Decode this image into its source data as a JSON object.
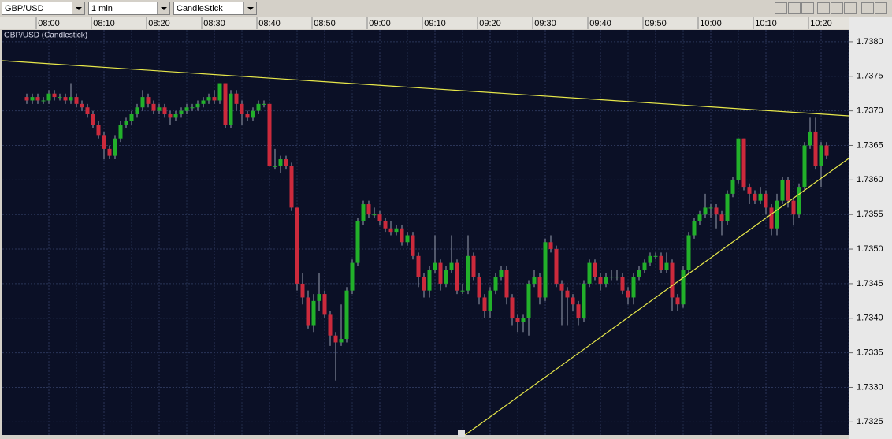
{
  "toolbar": {
    "symbol": "GBP/USD",
    "interval": "1 min",
    "chart_style": "CandleStick"
  },
  "chart_data": {
    "type": "candlestick",
    "title": "GBP/USD (Candlestick)",
    "up_color": "#22b02a",
    "down_color": "#cc2a3c",
    "grid": true,
    "ylim": [
      1.73231,
      1.73817
    ],
    "yticks": [
      {
        "value": 1.7325,
        "label": "1.7325"
      },
      {
        "value": 1.733,
        "label": "1.7330"
      },
      {
        "value": 1.7335,
        "label": "1.7335"
      },
      {
        "value": 1.734,
        "label": "1.7340"
      },
      {
        "value": 1.7345,
        "label": "1.7345"
      },
      {
        "value": 1.735,
        "label": "1.7350"
      },
      {
        "value": 1.7355,
        "label": "1.7355"
      },
      {
        "value": 1.736,
        "label": "1.7360"
      },
      {
        "value": 1.7365,
        "label": "1.7365"
      },
      {
        "value": 1.737,
        "label": "1.7370"
      },
      {
        "value": 1.7375,
        "label": "1.7375"
      },
      {
        "value": 1.738,
        "label": "1.7380"
      }
    ],
    "xticks": [
      "08:00",
      "08:10",
      "08:20",
      "08:30",
      "08:40",
      "08:50",
      "09:00",
      "09:10",
      "09:20",
      "09:30",
      "09:40",
      "09:50",
      "10:00",
      "10:10",
      "10:20"
    ],
    "candles": [
      [
        1.7372,
        1.73725,
        1.7371,
        1.73715
      ],
      [
        1.73715,
        1.73725,
        1.7371,
        1.7372
      ],
      [
        1.7372,
        1.73725,
        1.7371,
        1.73715
      ],
      [
        1.73715,
        1.7372,
        1.7371,
        1.73715
      ],
      [
        1.73715,
        1.7373,
        1.7371,
        1.73725
      ],
      [
        1.73725,
        1.7373,
        1.73715,
        1.7372
      ],
      [
        1.7372,
        1.73725,
        1.73715,
        1.7372
      ],
      [
        1.7372,
        1.73725,
        1.7371,
        1.73715
      ],
      [
        1.73715,
        1.7374,
        1.7371,
        1.7372
      ],
      [
        1.7372,
        1.73725,
        1.73705,
        1.7371
      ],
      [
        1.7371,
        1.73715,
        1.737,
        1.73705
      ],
      [
        1.73705,
        1.7371,
        1.7369,
        1.73695
      ],
      [
        1.73695,
        1.737,
        1.73675,
        1.7368
      ],
      [
        1.7368,
        1.73685,
        1.7366,
        1.73665
      ],
      [
        1.73665,
        1.7367,
        1.7363,
        1.73645
      ],
      [
        1.73645,
        1.7365,
        1.7363,
        1.73635
      ],
      [
        1.73635,
        1.73665,
        1.7363,
        1.7366
      ],
      [
        1.7366,
        1.73685,
        1.73655,
        1.7368
      ],
      [
        1.7368,
        1.7369,
        1.73675,
        1.73685
      ],
      [
        1.73685,
        1.737,
        1.7368,
        1.73695
      ],
      [
        1.73695,
        1.7371,
        1.7369,
        1.73705
      ],
      [
        1.73705,
        1.7373,
        1.737,
        1.7372
      ],
      [
        1.7372,
        1.73725,
        1.73705,
        1.7371
      ],
      [
        1.7371,
        1.73715,
        1.73695,
        1.737
      ],
      [
        1.737,
        1.7371,
        1.73695,
        1.73705
      ],
      [
        1.73705,
        1.7371,
        1.7369,
        1.73695
      ],
      [
        1.73695,
        1.737,
        1.7368,
        1.7369
      ],
      [
        1.7369,
        1.737,
        1.73685,
        1.73695
      ],
      [
        1.73695,
        1.73705,
        1.7369,
        1.737
      ],
      [
        1.737,
        1.7371,
        1.73695,
        1.73705
      ],
      [
        1.73705,
        1.7371,
        1.737,
        1.73705
      ],
      [
        1.73705,
        1.73715,
        1.737,
        1.7371
      ],
      [
        1.7371,
        1.7372,
        1.73705,
        1.73715
      ],
      [
        1.73715,
        1.73725,
        1.7371,
        1.7372
      ],
      [
        1.7372,
        1.7373,
        1.7371,
        1.73715
      ],
      [
        1.73715,
        1.7374,
        1.7371,
        1.7374
      ],
      [
        1.7374,
        1.7374,
        1.73675,
        1.7368
      ],
      [
        1.7368,
        1.7373,
        1.73675,
        1.73725
      ],
      [
        1.73725,
        1.7373,
        1.737,
        1.7371
      ],
      [
        1.7371,
        1.73715,
        1.7368,
        1.73695
      ],
      [
        1.73695,
        1.737,
        1.73685,
        1.7369
      ],
      [
        1.7369,
        1.73705,
        1.73685,
        1.737
      ],
      [
        1.737,
        1.73715,
        1.73695,
        1.7371
      ],
      [
        1.7371,
        1.73715,
        1.73705,
        1.7371
      ],
      [
        1.7371,
        1.7371,
        1.7362,
        1.7362
      ],
      [
        1.7362,
        1.73645,
        1.73615,
        1.7362
      ],
      [
        1.7362,
        1.73635,
        1.7361,
        1.7363
      ],
      [
        1.7363,
        1.73635,
        1.73615,
        1.7362
      ],
      [
        1.7362,
        1.73625,
        1.73555,
        1.7356
      ],
      [
        1.7356,
        1.7356,
        1.7344,
        1.7345
      ],
      [
        1.7345,
        1.73465,
        1.7342,
        1.7343
      ],
      [
        1.7343,
        1.7344,
        1.73385,
        1.7339
      ],
      [
        1.7339,
        1.73435,
        1.7338,
        1.73425
      ],
      [
        1.73425,
        1.73465,
        1.7341,
        1.73435
      ],
      [
        1.73435,
        1.7344,
        1.734,
        1.73405
      ],
      [
        1.73405,
        1.7341,
        1.7336,
        1.73375
      ],
      [
        1.73375,
        1.7338,
        1.7331,
        1.73365
      ],
      [
        1.73365,
        1.7342,
        1.7336,
        1.7337
      ],
      [
        1.7337,
        1.73445,
        1.73365,
        1.7344
      ],
      [
        1.7344,
        1.73485,
        1.73435,
        1.7348
      ],
      [
        1.7348,
        1.73545,
        1.73475,
        1.7354
      ],
      [
        1.7354,
        1.7357,
        1.73535,
        1.73565
      ],
      [
        1.73565,
        1.7357,
        1.73545,
        1.7355
      ],
      [
        1.7355,
        1.7356,
        1.73545,
        1.7355
      ],
      [
        1.7355,
        1.73555,
        1.73535,
        1.7354
      ],
      [
        1.7354,
        1.73545,
        1.73525,
        1.7353
      ],
      [
        1.7353,
        1.7354,
        1.7352,
        1.73525
      ],
      [
        1.73525,
        1.73535,
        1.7352,
        1.7353
      ],
      [
        1.7353,
        1.73535,
        1.73505,
        1.7351
      ],
      [
        1.7351,
        1.73525,
        1.73505,
        1.7352
      ],
      [
        1.7352,
        1.73525,
        1.73485,
        1.7349
      ],
      [
        1.7349,
        1.73495,
        1.73445,
        1.7346
      ],
      [
        1.7346,
        1.73465,
        1.7343,
        1.7344
      ],
      [
        1.7344,
        1.73475,
        1.7343,
        1.7347
      ],
      [
        1.7347,
        1.7352,
        1.73465,
        1.7348
      ],
      [
        1.7348,
        1.73485,
        1.7344,
        1.7345
      ],
      [
        1.7345,
        1.73475,
        1.73445,
        1.7347
      ],
      [
        1.7347,
        1.7352,
        1.73465,
        1.7348
      ],
      [
        1.7348,
        1.73485,
        1.73435,
        1.7344
      ],
      [
        1.7344,
        1.7345,
        1.73435,
        1.7344
      ],
      [
        1.7344,
        1.7352,
        1.73435,
        1.7349
      ],
      [
        1.7349,
        1.73495,
        1.73455,
        1.7346
      ],
      [
        1.7346,
        1.73465,
        1.7342,
        1.7343
      ],
      [
        1.7343,
        1.73435,
        1.734,
        1.7341
      ],
      [
        1.7341,
        1.73445,
        1.734,
        1.7344
      ],
      [
        1.7344,
        1.73465,
        1.73435,
        1.7346
      ],
      [
        1.7346,
        1.73475,
        1.73455,
        1.7347
      ],
      [
        1.7347,
        1.73475,
        1.7342,
        1.7343
      ],
      [
        1.7343,
        1.73435,
        1.7339,
        1.734
      ],
      [
        1.734,
        1.73405,
        1.7338,
        1.73395
      ],
      [
        1.73395,
        1.73405,
        1.7338,
        1.734
      ],
      [
        1.734,
        1.73455,
        1.73375,
        1.7345
      ],
      [
        1.7345,
        1.7347,
        1.73445,
        1.7346
      ],
      [
        1.7346,
        1.73465,
        1.7342,
        1.7343
      ],
      [
        1.7343,
        1.73515,
        1.73425,
        1.7351
      ],
      [
        1.7351,
        1.7352,
        1.73495,
        1.735
      ],
      [
        1.735,
        1.73505,
        1.73445,
        1.7345
      ],
      [
        1.7345,
        1.73455,
        1.7339,
        1.7344
      ],
      [
        1.7344,
        1.73445,
        1.7339,
        1.7343
      ],
      [
        1.7343,
        1.73435,
        1.7341,
        1.7342
      ],
      [
        1.7342,
        1.73425,
        1.7339,
        1.734
      ],
      [
        1.734,
        1.73455,
        1.73395,
        1.7345
      ],
      [
        1.7345,
        1.73485,
        1.73445,
        1.7348
      ],
      [
        1.7348,
        1.73485,
        1.73455,
        1.7346
      ],
      [
        1.7346,
        1.73465,
        1.7344,
        1.7345
      ],
      [
        1.7345,
        1.73465,
        1.73445,
        1.7346
      ],
      [
        1.7346,
        1.7347,
        1.73455,
        1.7346
      ],
      [
        1.7346,
        1.7347,
        1.73455,
        1.7346
      ],
      [
        1.7346,
        1.73465,
        1.73435,
        1.7344
      ],
      [
        1.7344,
        1.73445,
        1.7342,
        1.7343
      ],
      [
        1.7343,
        1.73465,
        1.7342,
        1.7346
      ],
      [
        1.7346,
        1.73475,
        1.73455,
        1.7347
      ],
      [
        1.7347,
        1.73485,
        1.73465,
        1.7348
      ],
      [
        1.7348,
        1.73495,
        1.73475,
        1.7349
      ],
      [
        1.7349,
        1.73495,
        1.73485,
        1.7349
      ],
      [
        1.7349,
        1.73495,
        1.73465,
        1.7347
      ],
      [
        1.7347,
        1.73495,
        1.73465,
        1.7348
      ],
      [
        1.7348,
        1.73485,
        1.7341,
        1.7343
      ],
      [
        1.7343,
        1.73435,
        1.7341,
        1.7342
      ],
      [
        1.7342,
        1.73475,
        1.73415,
        1.7347
      ],
      [
        1.7347,
        1.73525,
        1.73465,
        1.7352
      ],
      [
        1.7352,
        1.73545,
        1.73515,
        1.7354
      ],
      [
        1.7354,
        1.73555,
        1.73535,
        1.7355
      ],
      [
        1.7355,
        1.7358,
        1.73545,
        1.7356
      ],
      [
        1.7356,
        1.73565,
        1.73545,
        1.7356
      ],
      [
        1.7356,
        1.73565,
        1.7353,
        1.7355
      ],
      [
        1.7355,
        1.73555,
        1.7352,
        1.7354
      ],
      [
        1.7354,
        1.73585,
        1.73535,
        1.7358
      ],
      [
        1.7358,
        1.73605,
        1.73575,
        1.736
      ],
      [
        1.736,
        1.7366,
        1.73595,
        1.7366
      ],
      [
        1.7366,
        1.7366,
        1.73585,
        1.7359
      ],
      [
        1.7359,
        1.73595,
        1.73565,
        1.7358
      ],
      [
        1.7358,
        1.73585,
        1.73565,
        1.7357
      ],
      [
        1.7357,
        1.7359,
        1.73565,
        1.7358
      ],
      [
        1.7358,
        1.73585,
        1.7355,
        1.7356
      ],
      [
        1.7356,
        1.73565,
        1.7352,
        1.7353
      ],
      [
        1.7353,
        1.7358,
        1.7352,
        1.7357
      ],
      [
        1.7357,
        1.73605,
        1.73565,
        1.736
      ],
      [
        1.736,
        1.73605,
        1.7356,
        1.7357
      ],
      [
        1.7357,
        1.73575,
        1.73535,
        1.7355
      ],
      [
        1.7355,
        1.73595,
        1.73545,
        1.7359
      ],
      [
        1.7359,
        1.73655,
        1.73585,
        1.7365
      ],
      [
        1.7365,
        1.7369,
        1.73645,
        1.7367
      ],
      [
        1.7367,
        1.7369,
        1.73615,
        1.7362
      ],
      [
        1.7362,
        1.73655,
        1.7359,
        1.7365
      ],
      [
        1.7365,
        1.73655,
        1.7363,
        1.73635
      ]
    ]
  }
}
